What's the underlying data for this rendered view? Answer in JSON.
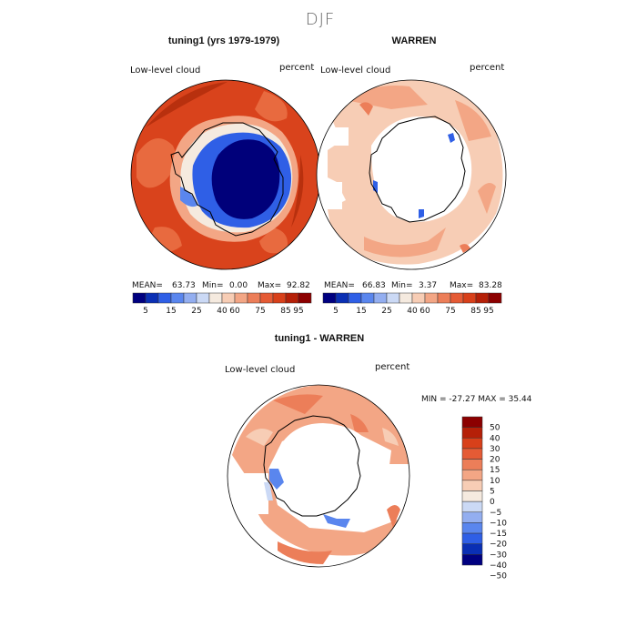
{
  "title": "DJF",
  "palette_abs": [
    "#000080",
    "#0a2fb4",
    "#2f5fe6",
    "#5a86ee",
    "#93aef0",
    "#cbd9f5",
    "#f5eadf",
    "#f7cdb5",
    "#f3a685",
    "#ec7e59",
    "#e55b35",
    "#d8401a",
    "#b52008",
    "#8c0000"
  ],
  "palette_diff": [
    "#000080",
    "#0a2fb4",
    "#2f5fe6",
    "#5a86ee",
    "#93aef0",
    "#cbd9f5",
    "#f5eadf",
    "#f7cdb5",
    "#f3a685",
    "#ec7e59",
    "#e55b35",
    "#d8401a",
    "#b52008",
    "#8c0000"
  ],
  "panels": [
    {
      "title": "tuning1 (yrs 1979-1979)",
      "variable": "Low-level cloud",
      "units": "percent",
      "stats": {
        "mean_label": "MEAN=",
        "mean": "63.73",
        "min_label": "Min=",
        "min": "0.00",
        "max_label": "Max=",
        "max": "92.82"
      },
      "colorbar_ticks": [
        "5",
        "15",
        "25",
        "40",
        "60",
        "75",
        "85",
        "95"
      ]
    },
    {
      "title": "WARREN",
      "variable": "Low-level cloud",
      "units": "percent",
      "stats": {
        "mean_label": "MEAN=",
        "mean": "66.83",
        "min_label": "Min=",
        "min": "3.37",
        "max_label": "Max=",
        "max": "83.28"
      },
      "colorbar_ticks": [
        "5",
        "15",
        "25",
        "40",
        "60",
        "75",
        "85",
        "95"
      ]
    },
    {
      "title": "tuning1 - WARREN",
      "variable": "Low-level cloud",
      "units": "percent",
      "stats_text": "MIN = -27.27 MAX =  35.44",
      "colorbar_ticks": [
        "50",
        "40",
        "30",
        "20",
        "15",
        "10",
        "5",
        "0",
        "−5",
        "−10",
        "−15",
        "−20",
        "−30",
        "−40",
        "−50"
      ]
    }
  ]
}
